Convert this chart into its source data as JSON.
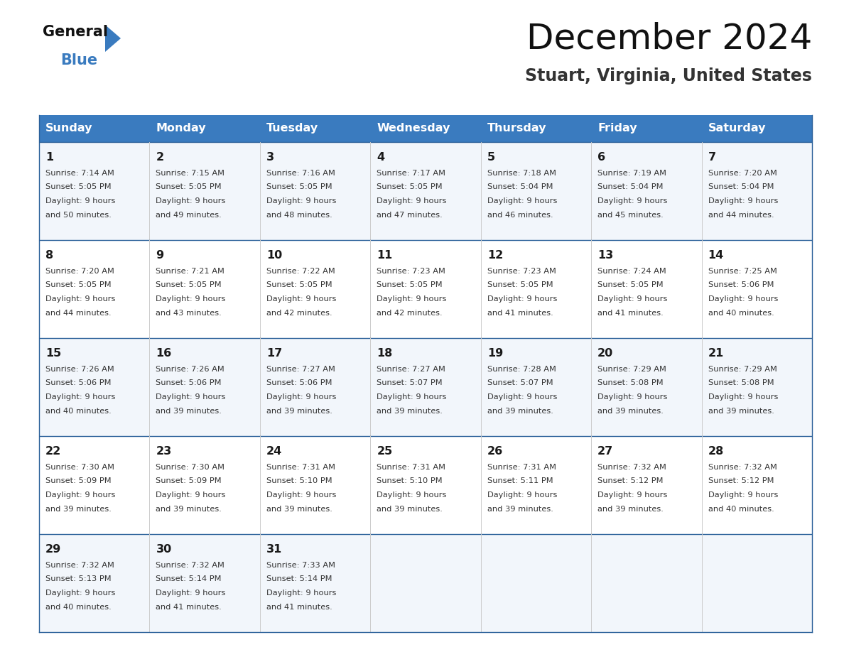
{
  "title": "December 2024",
  "subtitle": "Stuart, Virginia, United States",
  "header_bg_color": "#3a7bbf",
  "header_text_color": "#ffffff",
  "row_bg_colors": [
    "#f2f6fb",
    "#ffffff",
    "#f2f6fb",
    "#ffffff",
    "#f2f6fb"
  ],
  "border_color": "#2a6099",
  "cell_border_color": "#cccccc",
  "day_headers": [
    "Sunday",
    "Monday",
    "Tuesday",
    "Wednesday",
    "Thursday",
    "Friday",
    "Saturday"
  ],
  "calendar_data": [
    [
      {
        "day": 1,
        "sunrise": "7:14 AM",
        "sunset": "5:05 PM",
        "daylight_hours": 9,
        "daylight_minutes": 50
      },
      {
        "day": 2,
        "sunrise": "7:15 AM",
        "sunset": "5:05 PM",
        "daylight_hours": 9,
        "daylight_minutes": 49
      },
      {
        "day": 3,
        "sunrise": "7:16 AM",
        "sunset": "5:05 PM",
        "daylight_hours": 9,
        "daylight_minutes": 48
      },
      {
        "day": 4,
        "sunrise": "7:17 AM",
        "sunset": "5:05 PM",
        "daylight_hours": 9,
        "daylight_minutes": 47
      },
      {
        "day": 5,
        "sunrise": "7:18 AM",
        "sunset": "5:04 PM",
        "daylight_hours": 9,
        "daylight_minutes": 46
      },
      {
        "day": 6,
        "sunrise": "7:19 AM",
        "sunset": "5:04 PM",
        "daylight_hours": 9,
        "daylight_minutes": 45
      },
      {
        "day": 7,
        "sunrise": "7:20 AM",
        "sunset": "5:04 PM",
        "daylight_hours": 9,
        "daylight_minutes": 44
      }
    ],
    [
      {
        "day": 8,
        "sunrise": "7:20 AM",
        "sunset": "5:05 PM",
        "daylight_hours": 9,
        "daylight_minutes": 44
      },
      {
        "day": 9,
        "sunrise": "7:21 AM",
        "sunset": "5:05 PM",
        "daylight_hours": 9,
        "daylight_minutes": 43
      },
      {
        "day": 10,
        "sunrise": "7:22 AM",
        "sunset": "5:05 PM",
        "daylight_hours": 9,
        "daylight_minutes": 42
      },
      {
        "day": 11,
        "sunrise": "7:23 AM",
        "sunset": "5:05 PM",
        "daylight_hours": 9,
        "daylight_minutes": 42
      },
      {
        "day": 12,
        "sunrise": "7:23 AM",
        "sunset": "5:05 PM",
        "daylight_hours": 9,
        "daylight_minutes": 41
      },
      {
        "day": 13,
        "sunrise": "7:24 AM",
        "sunset": "5:05 PM",
        "daylight_hours": 9,
        "daylight_minutes": 41
      },
      {
        "day": 14,
        "sunrise": "7:25 AM",
        "sunset": "5:06 PM",
        "daylight_hours": 9,
        "daylight_minutes": 40
      }
    ],
    [
      {
        "day": 15,
        "sunrise": "7:26 AM",
        "sunset": "5:06 PM",
        "daylight_hours": 9,
        "daylight_minutes": 40
      },
      {
        "day": 16,
        "sunrise": "7:26 AM",
        "sunset": "5:06 PM",
        "daylight_hours": 9,
        "daylight_minutes": 39
      },
      {
        "day": 17,
        "sunrise": "7:27 AM",
        "sunset": "5:06 PM",
        "daylight_hours": 9,
        "daylight_minutes": 39
      },
      {
        "day": 18,
        "sunrise": "7:27 AM",
        "sunset": "5:07 PM",
        "daylight_hours": 9,
        "daylight_minutes": 39
      },
      {
        "day": 19,
        "sunrise": "7:28 AM",
        "sunset": "5:07 PM",
        "daylight_hours": 9,
        "daylight_minutes": 39
      },
      {
        "day": 20,
        "sunrise": "7:29 AM",
        "sunset": "5:08 PM",
        "daylight_hours": 9,
        "daylight_minutes": 39
      },
      {
        "day": 21,
        "sunrise": "7:29 AM",
        "sunset": "5:08 PM",
        "daylight_hours": 9,
        "daylight_minutes": 39
      }
    ],
    [
      {
        "day": 22,
        "sunrise": "7:30 AM",
        "sunset": "5:09 PM",
        "daylight_hours": 9,
        "daylight_minutes": 39
      },
      {
        "day": 23,
        "sunrise": "7:30 AM",
        "sunset": "5:09 PM",
        "daylight_hours": 9,
        "daylight_minutes": 39
      },
      {
        "day": 24,
        "sunrise": "7:31 AM",
        "sunset": "5:10 PM",
        "daylight_hours": 9,
        "daylight_minutes": 39
      },
      {
        "day": 25,
        "sunrise": "7:31 AM",
        "sunset": "5:10 PM",
        "daylight_hours": 9,
        "daylight_minutes": 39
      },
      {
        "day": 26,
        "sunrise": "7:31 AM",
        "sunset": "5:11 PM",
        "daylight_hours": 9,
        "daylight_minutes": 39
      },
      {
        "day": 27,
        "sunrise": "7:32 AM",
        "sunset": "5:12 PM",
        "daylight_hours": 9,
        "daylight_minutes": 39
      },
      {
        "day": 28,
        "sunrise": "7:32 AM",
        "sunset": "5:12 PM",
        "daylight_hours": 9,
        "daylight_minutes": 40
      }
    ],
    [
      {
        "day": 29,
        "sunrise": "7:32 AM",
        "sunset": "5:13 PM",
        "daylight_hours": 9,
        "daylight_minutes": 40
      },
      {
        "day": 30,
        "sunrise": "7:32 AM",
        "sunset": "5:14 PM",
        "daylight_hours": 9,
        "daylight_minutes": 41
      },
      {
        "day": 31,
        "sunrise": "7:33 AM",
        "sunset": "5:14 PM",
        "daylight_hours": 9,
        "daylight_minutes": 41
      },
      null,
      null,
      null,
      null
    ]
  ],
  "logo_text1": "General",
  "logo_text2": "Blue",
  "logo_triangle_color": "#3a7bbf",
  "fig_width": 11.88,
  "fig_height": 9.18,
  "dpi": 100
}
